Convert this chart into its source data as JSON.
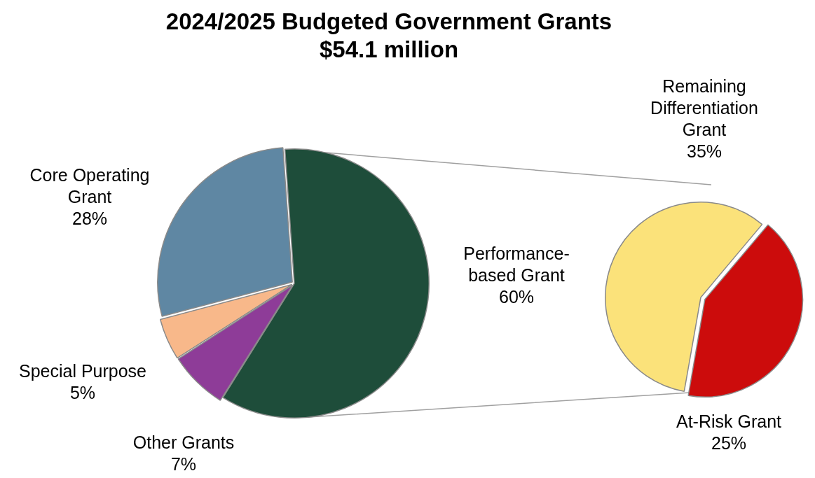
{
  "chart_data": [
    {
      "type": "pie",
      "title": "2024/2025 Budgeted Government Grants",
      "subtitle": "$54.1 million",
      "categories": [
        "Performance-based Grant",
        "Other Grants",
        "Special Purpose",
        "Core Operating Grant"
      ],
      "values": [
        60,
        7,
        5,
        28
      ],
      "value_labels": [
        "60%",
        "7%",
        "5%",
        "28%"
      ],
      "colors": [
        "#1e4d3a",
        "#8e3c98",
        "#f8b88a",
        "#5f87a3"
      ]
    },
    {
      "type": "pie",
      "categories": [
        "Remaining Differentiation Grant",
        "At-Risk Grant"
      ],
      "values": [
        35,
        25
      ],
      "value_labels": [
        "35%",
        "25%"
      ],
      "colors": [
        "#fbe27a",
        "#cc0c0c"
      ]
    }
  ]
}
